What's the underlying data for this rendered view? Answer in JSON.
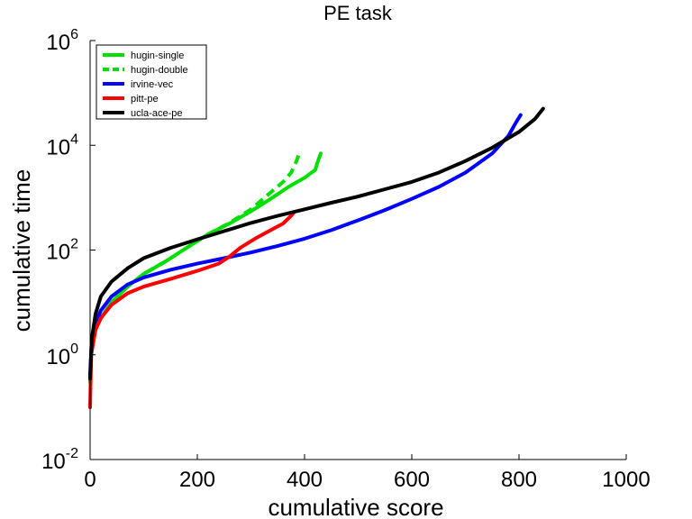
{
  "chart_data": {
    "type": "line",
    "title": "PE task",
    "xlabel": "cumulative score",
    "ylabel": "cumulative time",
    "xlim": [
      0,
      1000
    ],
    "ylim": [
      0.01,
      1000000
    ],
    "yscale": "log",
    "grid": false,
    "legend_position": "top-left",
    "x_ticks": [
      {
        "value": 0,
        "label": "0"
      },
      {
        "value": 200,
        "label": "200"
      },
      {
        "value": 400,
        "label": "400"
      },
      {
        "value": 600,
        "label": "600"
      },
      {
        "value": 800,
        "label": "800"
      },
      {
        "value": 1000,
        "label": "1000"
      }
    ],
    "y_ticks": [
      {
        "value": 0.01,
        "base": "10",
        "exp": "-2"
      },
      {
        "value": 1,
        "base": "10",
        "exp": "0"
      },
      {
        "value": 100,
        "base": "10",
        "exp": "2"
      },
      {
        "value": 10000,
        "base": "10",
        "exp": "4"
      },
      {
        "value": 1000000,
        "base": "10",
        "exp": "6"
      }
    ],
    "series": [
      {
        "name": "hugin-single",
        "color": "#00e000",
        "dash": "solid",
        "points": [
          [
            0,
            0.3
          ],
          [
            3,
            1.5
          ],
          [
            10,
            3
          ],
          [
            20,
            5
          ],
          [
            40,
            10
          ],
          [
            70,
            20
          ],
          [
            100,
            35
          ],
          [
            140,
            60
          ],
          [
            180,
            110
          ],
          [
            220,
            200
          ],
          [
            260,
            320
          ],
          [
            300,
            550
          ],
          [
            340,
            1000
          ],
          [
            370,
            1600
          ],
          [
            400,
            2400
          ],
          [
            420,
            3400
          ],
          [
            425,
            5000
          ],
          [
            430,
            7000
          ]
        ]
      },
      {
        "name": "hugin-double",
        "color": "#00e000",
        "dash": "dashed",
        "points": [
          [
            0,
            0.3
          ],
          [
            3,
            1.5
          ],
          [
            10,
            3
          ],
          [
            20,
            5
          ],
          [
            40,
            10
          ],
          [
            70,
            20
          ],
          [
            100,
            35
          ],
          [
            140,
            60
          ],
          [
            180,
            110
          ],
          [
            220,
            200
          ],
          [
            260,
            330
          ],
          [
            300,
            600
          ],
          [
            330,
            1100
          ],
          [
            360,
            2000
          ],
          [
            375,
            3000
          ],
          [
            385,
            5000
          ],
          [
            390,
            7000
          ]
        ]
      },
      {
        "name": "irvine-vec",
        "color": "#0000ff",
        "dash": "solid",
        "points": [
          [
            0,
            0.4
          ],
          [
            3,
            2
          ],
          [
            10,
            4
          ],
          [
            20,
            7
          ],
          [
            40,
            13
          ],
          [
            70,
            22
          ],
          [
            100,
            30
          ],
          [
            150,
            42
          ],
          [
            200,
            55
          ],
          [
            250,
            70
          ],
          [
            300,
            90
          ],
          [
            350,
            120
          ],
          [
            400,
            165
          ],
          [
            450,
            240
          ],
          [
            500,
            370
          ],
          [
            550,
            580
          ],
          [
            600,
            950
          ],
          [
            650,
            1600
          ],
          [
            700,
            3000
          ],
          [
            750,
            7000
          ],
          [
            780,
            15000
          ],
          [
            795,
            28000
          ],
          [
            803,
            38000
          ]
        ]
      },
      {
        "name": "pitt-pe",
        "color": "#ff0000",
        "dash": "solid",
        "points": [
          [
            0,
            0.1
          ],
          [
            2,
            1
          ],
          [
            10,
            3
          ],
          [
            20,
            5
          ],
          [
            40,
            9
          ],
          [
            70,
            15
          ],
          [
            100,
            20
          ],
          [
            150,
            28
          ],
          [
            200,
            40
          ],
          [
            240,
            55
          ],
          [
            260,
            75
          ],
          [
            280,
            110
          ],
          [
            310,
            170
          ],
          [
            340,
            250
          ],
          [
            360,
            320
          ],
          [
            375,
            450
          ],
          [
            380,
            520
          ]
        ]
      },
      {
        "name": "ucla-ace-pe",
        "color": "#000000",
        "dash": "solid",
        "points": [
          [
            0,
            0.35
          ],
          [
            3,
            2
          ],
          [
            10,
            6
          ],
          [
            20,
            13
          ],
          [
            40,
            25
          ],
          [
            70,
            45
          ],
          [
            100,
            70
          ],
          [
            150,
            110
          ],
          [
            200,
            160
          ],
          [
            250,
            230
          ],
          [
            300,
            330
          ],
          [
            350,
            450
          ],
          [
            400,
            600
          ],
          [
            450,
            800
          ],
          [
            500,
            1050
          ],
          [
            550,
            1450
          ],
          [
            600,
            2000
          ],
          [
            650,
            3000
          ],
          [
            700,
            5000
          ],
          [
            750,
            9000
          ],
          [
            800,
            18000
          ],
          [
            830,
            32000
          ],
          [
            845,
            50000
          ]
        ]
      }
    ]
  }
}
